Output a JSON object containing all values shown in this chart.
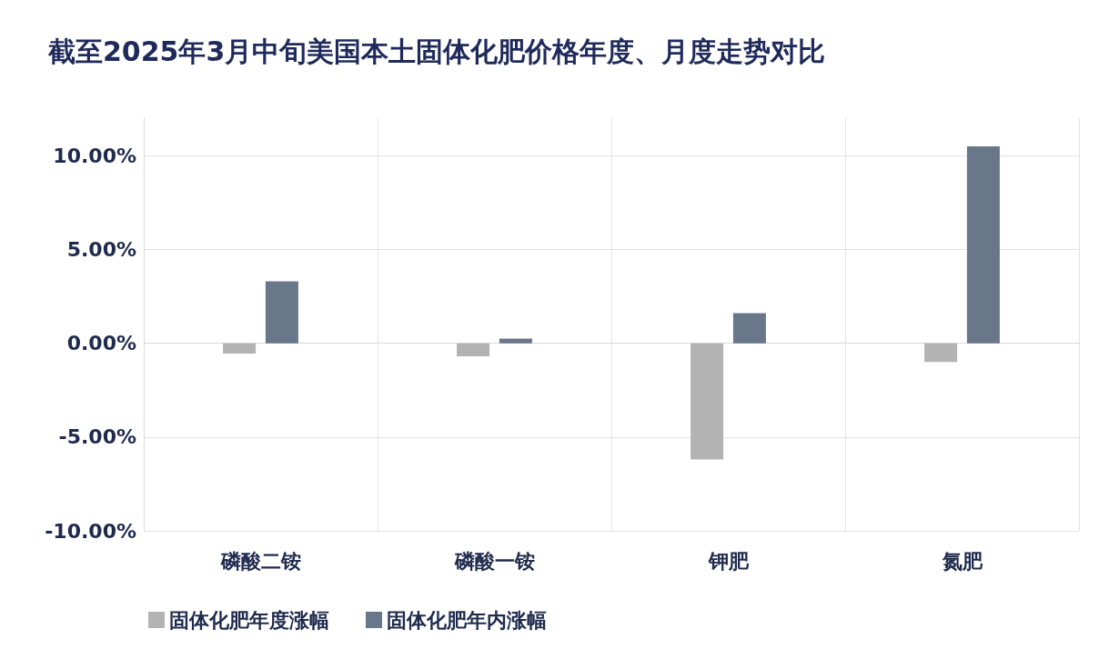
{
  "chart_data": {
    "type": "bar",
    "title": "截至2025年3月中旬美国本土固体化肥价格年度、月度走势对比",
    "categories": [
      "磷酸二铵",
      "磷酸一铵",
      "钾肥",
      "氮肥"
    ],
    "series": [
      {
        "name": "固体化肥年度涨幅",
        "color": "#b3b3b3",
        "values": [
          -0.55,
          -0.7,
          -6.2,
          -1.0
        ]
      },
      {
        "name": "固体化肥年内涨幅",
        "color": "#687789",
        "values": [
          3.3,
          0.25,
          1.6,
          10.5
        ]
      }
    ],
    "ylim": [
      -10,
      12
    ],
    "yticks": [
      {
        "value": -10,
        "label": "-10.00%"
      },
      {
        "value": -5,
        "label": "-5.00%"
      },
      {
        "value": 0,
        "label": "0.00%"
      },
      {
        "value": 5,
        "label": "5.00%"
      },
      {
        "value": 10,
        "label": "10.00%"
      }
    ],
    "grid": true,
    "legend": "bottom left"
  }
}
